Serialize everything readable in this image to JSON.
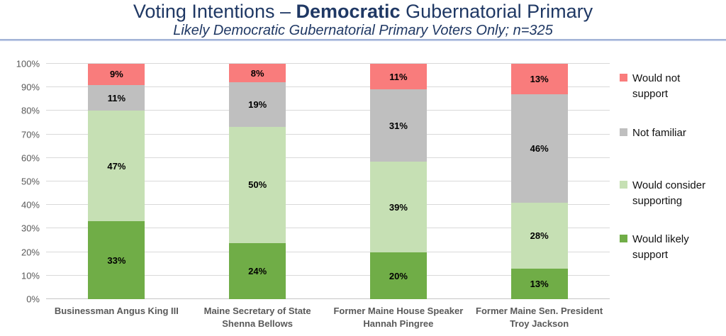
{
  "header": {
    "title_pre": "Voting Intentions – ",
    "title_bold": "Democratic",
    "title_post": " Gubernatorial Primary",
    "subtitle": "Likely Democratic Gubernatorial Primary Voters Only; n=325"
  },
  "colors": {
    "title_text": "#1F3864",
    "axis_text": "#595959",
    "gridline": "#D9D9D9",
    "divider_blue": "#8FA3CC"
  },
  "chart_data": {
    "type": "bar",
    "stacked": true,
    "title": "Voting Intentions – Democratic Gubernatorial Primary",
    "subtitle": "Likely Democratic Gubernatorial Primary Voters Only; n=325",
    "categories": [
      "Businessman Angus King III",
      "Maine Secretary of State Shenna Bellows",
      "Former Maine House Speaker Hannah Pingree",
      "Former Maine Sen. President Troy Jackson"
    ],
    "series": [
      {
        "name": "Would likely support",
        "color": "#70AD47",
        "values": [
          33,
          24,
          20,
          13
        ]
      },
      {
        "name": "Would consider supporting",
        "color": "#C6E0B4",
        "values": [
          47,
          50,
          39,
          28
        ]
      },
      {
        "name": "Not familiar",
        "color": "#BFBFBF",
        "values": [
          11,
          19,
          31,
          46
        ]
      },
      {
        "name": "Would not support",
        "color": "#F97C7C",
        "values": [
          9,
          8,
          11,
          13
        ]
      }
    ],
    "legend_order_top_to_bottom": [
      "Would not support",
      "Not familiar",
      "Would consider supporting",
      "Would likely support"
    ],
    "y_ticks": [
      "0%",
      "10%",
      "20%",
      "30%",
      "40%",
      "50%",
      "60%",
      "70%",
      "80%",
      "90%",
      "100%"
    ],
    "ylim": [
      0,
      100
    ],
    "grid": true,
    "legend_position": "right",
    "data_label_format": "{value}%"
  }
}
